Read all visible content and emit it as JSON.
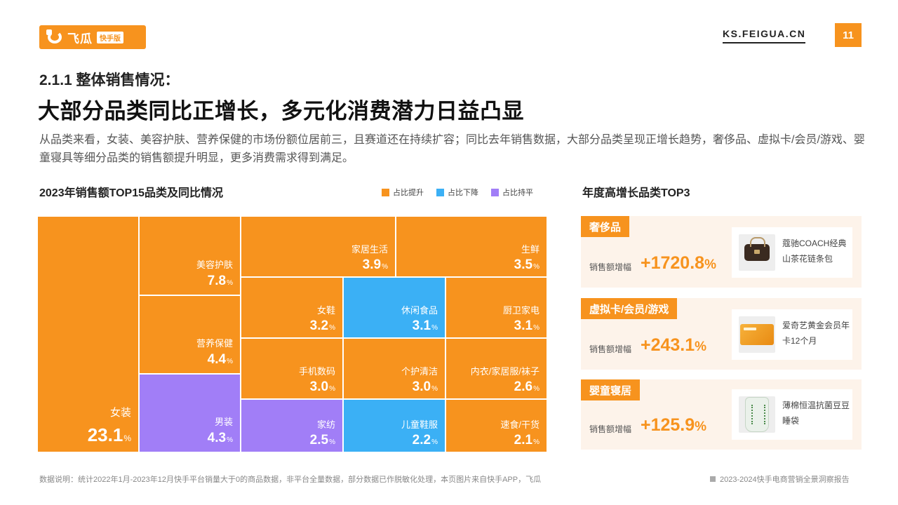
{
  "header": {
    "logo_text": "飞瓜",
    "logo_badge": "快手版",
    "site": "KS.FEIGUA.CN",
    "page_number": "11"
  },
  "section": {
    "subtitle": "2.1.1 整体销售情况：",
    "title": "大部分品类同比正增长，多元化消费潜力日益凸显",
    "description": "从品类来看，女装、美容护肤、营养保健的市场份额位居前三，且赛道还在持续扩容；同比去年销售数据，大部分品类呈现正增长趋势，奢侈品、虚拟卡/会员/游戏、婴童寝具等细分品类的销售额提升明显，更多消费需求得到满足。"
  },
  "colors": {
    "accent": "#f7931e",
    "up": "#f7931e",
    "down": "#3bb0f5",
    "flat": "#a17ef7"
  },
  "chart_data": {
    "type": "treemap",
    "title": "2023年销售额TOP15品类及同比情况",
    "unit": "%",
    "legend": [
      {
        "label": "占比提升",
        "status": "up"
      },
      {
        "label": "占比下降",
        "status": "down"
      },
      {
        "label": "占比持平",
        "status": "flat"
      }
    ],
    "items": [
      {
        "name": "女装",
        "value": 23.1,
        "status": "up"
      },
      {
        "name": "美容护肤",
        "value": 7.8,
        "status": "up"
      },
      {
        "name": "营养保健",
        "value": 4.4,
        "status": "up"
      },
      {
        "name": "男装",
        "value": 4.3,
        "status": "flat"
      },
      {
        "name": "家居生活",
        "value": 3.9,
        "status": "up"
      },
      {
        "name": "生鲜",
        "value": 3.5,
        "status": "up"
      },
      {
        "name": "女鞋",
        "value": 3.2,
        "status": "up"
      },
      {
        "name": "休闲食品",
        "value": 3.1,
        "status": "down"
      },
      {
        "name": "厨卫家电",
        "value": 3.1,
        "status": "up"
      },
      {
        "name": "手机数码",
        "value": 3.0,
        "status": "up"
      },
      {
        "name": "个护清洁",
        "value": 3.0,
        "status": "up"
      },
      {
        "name": "内衣/家居服/袜子",
        "value": 2.6,
        "status": "up"
      },
      {
        "name": "家纺",
        "value": 2.5,
        "status": "flat"
      },
      {
        "name": "儿童鞋服",
        "value": 2.2,
        "status": "down"
      },
      {
        "name": "速食/干货",
        "value": 2.1,
        "status": "up"
      }
    ]
  },
  "top3": {
    "title": "年度高增长品类TOP3",
    "metric_label": "销售额增幅",
    "items": [
      {
        "category": "奢侈品",
        "growth": "+1720.8",
        "unit": "%",
        "product": "蔻驰COACH经典山茶花链条包",
        "image_icon": "handbag-icon"
      },
      {
        "category": "虚拟卡/会员/游戏",
        "growth": "+243.1",
        "unit": "%",
        "product": "爱奇艺黄金会员年卡12个月",
        "image_icon": "membership-card-icon"
      },
      {
        "category": "婴童寝居",
        "growth": "+125.9",
        "unit": "%",
        "product": "薄棉恒温抗菌豆豆睡袋",
        "image_icon": "sleeping-bag-icon"
      }
    ]
  },
  "footer": {
    "note": "数据说明：统计2022年1月-2023年12月快手平台销量大于0的商品数据，非平台全量数据，部分数据已作脱敏化处理，本页图片来自快手APP，飞瓜",
    "report": "2023-2024快手电商营销全景洞察报告"
  }
}
